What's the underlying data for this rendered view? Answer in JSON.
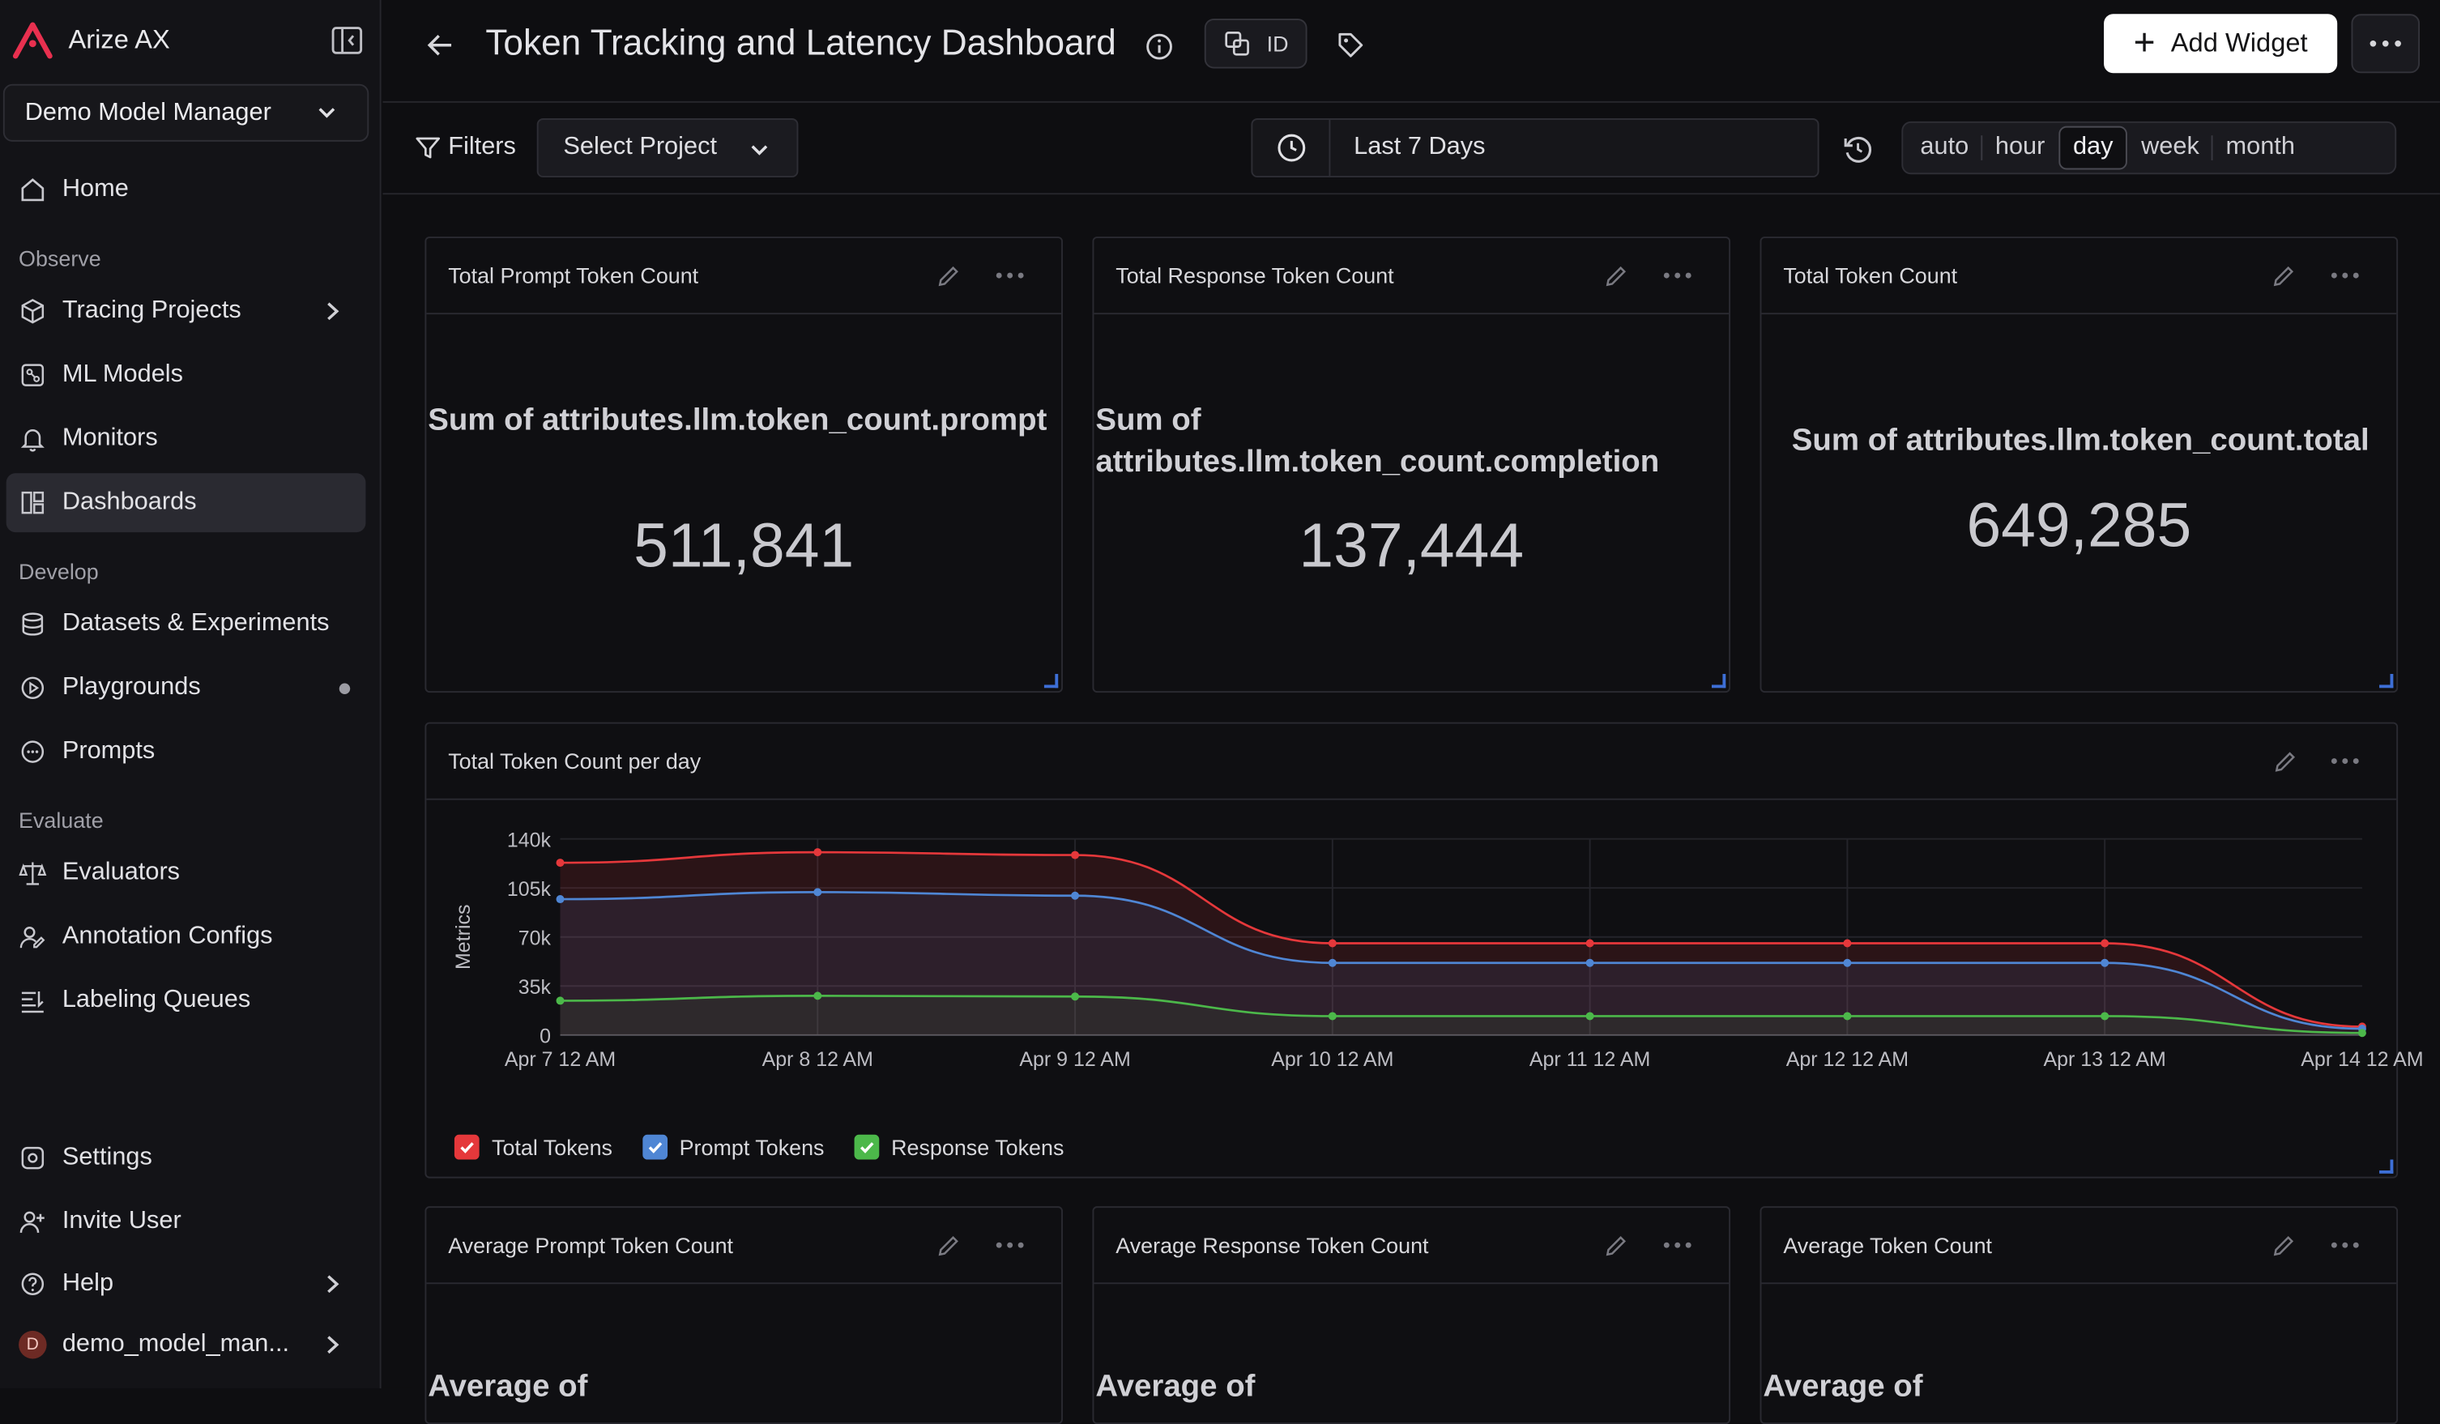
{
  "app": {
    "name": "Arize AX",
    "space": "Demo Model Manager"
  },
  "sidebar": {
    "home": "Home",
    "observe_label": "Observe",
    "observe": [
      "Tracing Projects",
      "ML Models",
      "Monitors",
      "Dashboards"
    ],
    "develop_label": "Develop",
    "develop": [
      "Datasets & Experiments",
      "Playgrounds",
      "Prompts"
    ],
    "evaluate_label": "Evaluate",
    "evaluate": [
      "Evaluators",
      "Annotation Configs",
      "Labeling Queues"
    ],
    "bottom": [
      "Settings",
      "Invite User",
      "Help"
    ],
    "user": {
      "initial": "D",
      "name": "demo_model_man..."
    }
  },
  "header": {
    "title": "Token Tracking and Latency Dashboard",
    "id_label": "ID",
    "add_widget": "Add Widget"
  },
  "filters": {
    "label": "Filters",
    "project_placeholder": "Select Project",
    "date_range": "Last 7 Days",
    "granularity": [
      "auto",
      "hour",
      "day",
      "week",
      "month"
    ],
    "granularity_selected": "day"
  },
  "stats": [
    {
      "title": "Total Prompt Token Count",
      "label": "Sum of attributes.llm.token_count.prompt",
      "value": "511,841"
    },
    {
      "title": "Total Response Token Count",
      "label": "Sum of attributes.llm.token_count.completion",
      "value": "137,444"
    },
    {
      "title": "Total Token Count",
      "label": "Sum of attributes.llm.token_count.total",
      "value": "649,285"
    }
  ],
  "avg_widgets": [
    {
      "title": "Average Prompt Token Count",
      "label": "Average of"
    },
    {
      "title": "Average Response Token Count",
      "label": "Average of"
    },
    {
      "title": "Average Token Count",
      "label": "Average of"
    }
  ],
  "chart_data": {
    "type": "line",
    "title": "Total Token Count per day",
    "ylabel": "Metrics",
    "categories": [
      "Apr 7 12 AM",
      "Apr 8 12 AM",
      "Apr 9 12 AM",
      "Apr 10 12 AM",
      "Apr 11 12 AM",
      "Apr 12 12 AM",
      "Apr 13 12 AM",
      "Apr 14 12 AM"
    ],
    "yticks": [
      0,
      35000,
      70000,
      105000,
      140000
    ],
    "ytick_labels": [
      "0",
      "35k",
      "70k",
      "105k",
      "140k"
    ],
    "ylim": [
      0,
      140000
    ],
    "series": [
      {
        "name": "Total Tokens",
        "color": "#e5383b",
        "values": [
          123000,
          130500,
          128500,
          65500,
          65500,
          65500,
          65500,
          6000
        ]
      },
      {
        "name": "Prompt Tokens",
        "color": "#4f86d4",
        "values": [
          97000,
          102000,
          99500,
          51500,
          51500,
          51500,
          51500,
          4500
        ]
      },
      {
        "name": "Response Tokens",
        "color": "#4cb84a",
        "values": [
          24500,
          28000,
          27500,
          13500,
          13500,
          13500,
          13500,
          1500
        ]
      }
    ],
    "grid": true,
    "legend": "bottom-left"
  }
}
